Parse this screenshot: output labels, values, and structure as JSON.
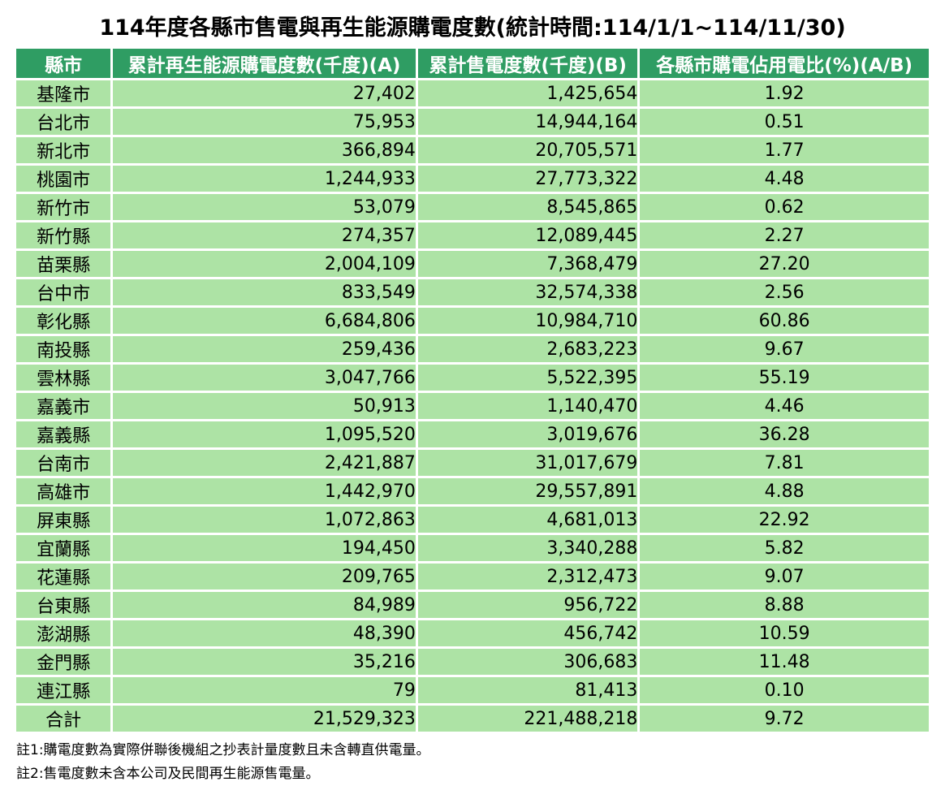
{
  "colors": {
    "header_bg": "#2F9D63",
    "header_text": "#FFFFFF",
    "cell_bg": "#ADE3A5",
    "body_text": "#000000",
    "page_bg": "#FFFFFF"
  },
  "chart_data": {
    "type": "table",
    "title": "114年度各縣市售電與再生能源購電度數(統計時間:114/1/1~114/11/30)",
    "columns": [
      "縣市",
      "累計再生能源購電度數(千度)(A)",
      "累計售電度數(千度)(B)",
      "各縣市購電佔用電比(%)(A/B)"
    ],
    "rows": [
      [
        "基隆市",
        "27,402",
        "1,425,654",
        "1.92"
      ],
      [
        "台北市",
        "75,953",
        "14,944,164",
        "0.51"
      ],
      [
        "新北市",
        "366,894",
        "20,705,571",
        "1.77"
      ],
      [
        "桃園市",
        "1,244,933",
        "27,773,322",
        "4.48"
      ],
      [
        "新竹市",
        "53,079",
        "8,545,865",
        "0.62"
      ],
      [
        "新竹縣",
        "274,357",
        "12,089,445",
        "2.27"
      ],
      [
        "苗栗縣",
        "2,004,109",
        "7,368,479",
        "27.20"
      ],
      [
        "台中市",
        "833,549",
        "32,574,338",
        "2.56"
      ],
      [
        "彰化縣",
        "6,684,806",
        "10,984,710",
        "60.86"
      ],
      [
        "南投縣",
        "259,436",
        "2,683,223",
        "9.67"
      ],
      [
        "雲林縣",
        "3,047,766",
        "5,522,395",
        "55.19"
      ],
      [
        "嘉義市",
        "50,913",
        "1,140,470",
        "4.46"
      ],
      [
        "嘉義縣",
        "1,095,520",
        "3,019,676",
        "36.28"
      ],
      [
        "台南市",
        "2,421,887",
        "31,017,679",
        "7.81"
      ],
      [
        "高雄市",
        "1,442,970",
        "29,557,891",
        "4.88"
      ],
      [
        "屏東縣",
        "1,072,863",
        "4,681,013",
        "22.92"
      ],
      [
        "宜蘭縣",
        "194,450",
        "3,340,288",
        "5.82"
      ],
      [
        "花蓮縣",
        "209,765",
        "2,312,473",
        "9.07"
      ],
      [
        "台東縣",
        "84,989",
        "956,722",
        "8.88"
      ],
      [
        "澎湖縣",
        "48,390",
        "456,742",
        "10.59"
      ],
      [
        "金門縣",
        "35,216",
        "306,683",
        "11.48"
      ],
      [
        "連江縣",
        "79",
        "81,413",
        "0.10"
      ],
      [
        "合計",
        "21,529,323",
        "221,488,218",
        "9.72"
      ]
    ],
    "notes": [
      "註1:購電度數為實際併聯後機組之抄表計量度數且未含轉直供電量。",
      "註2:售電度數未含本公司及民間再生能源售電量。"
    ]
  }
}
